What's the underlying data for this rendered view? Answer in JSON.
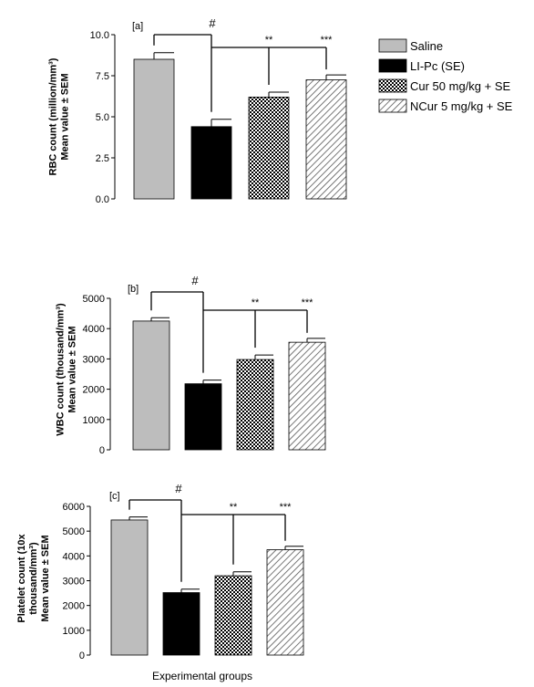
{
  "legend": [
    {
      "label": "Saline",
      "fill": "gray"
    },
    {
      "label": "LI-Pc (SE)",
      "fill": "black"
    },
    {
      "label": "Cur 50 mg/kg + SE",
      "fill": "check"
    },
    {
      "label": "NCur 5 mg/kg + SE",
      "fill": "hatch"
    }
  ],
  "x_axis_label": "Experimental groups",
  "colors": {
    "gray": "#bdbdbd",
    "black": "#000000",
    "axis": "#000000"
  },
  "chart_data": [
    {
      "type": "bar",
      "panel_label": "[a]",
      "ylabel_lines": [
        "RBC count (million/mm³)",
        "Mean value ± SEM"
      ],
      "categories": [
        "Saline",
        "LI-Pc (SE)",
        "Cur 50 mg/kg + SE",
        "NCur 5 mg/kg + SE"
      ],
      "values": [
        8.5,
        4.4,
        6.2,
        7.25
      ],
      "errors": [
        0.4,
        0.45,
        0.3,
        0.3
      ],
      "ylim": [
        0,
        10
      ],
      "yticks": [
        0.0,
        2.5,
        5.0,
        7.5,
        10.0
      ],
      "ytick_labels": [
        "0.0",
        "2.5",
        "5.0",
        "7.5",
        "10.0"
      ],
      "annotations": {
        "hash": "#",
        "cur": "**",
        "ncur": "***"
      }
    },
    {
      "type": "bar",
      "panel_label": "[b]",
      "ylabel_lines": [
        "WBC count (thousand/mm³)",
        "Mean value ± SEM"
      ],
      "categories": [
        "Saline",
        "LI-Pc (SE)",
        "Cur 50 mg/kg + SE",
        "NCur 5 mg/kg + SE"
      ],
      "values": [
        4250,
        2180,
        2980,
        3550
      ],
      "errors": [
        110,
        120,
        150,
        130
      ],
      "ylim": [
        0,
        5000
      ],
      "yticks": [
        0,
        1000,
        2000,
        3000,
        4000,
        5000
      ],
      "ytick_labels": [
        "0",
        "1000",
        "2000",
        "3000",
        "4000",
        "5000"
      ],
      "annotations": {
        "hash": "#",
        "cur": "**",
        "ncur": "***"
      }
    },
    {
      "type": "bar",
      "panel_label": "[c]",
      "ylabel_lines": [
        "Platelet count (10x",
        "thousand/mm³)",
        "Mean value ± SEM"
      ],
      "categories": [
        "Saline",
        "LI-Pc (SE)",
        "Cur 50 mg/kg + SE",
        "NCur 5 mg/kg + SE"
      ],
      "values": [
        5450,
        2520,
        3200,
        4250
      ],
      "errors": [
        120,
        140,
        160,
        140
      ],
      "ylim": [
        0,
        6000
      ],
      "yticks": [
        0,
        1000,
        2000,
        3000,
        4000,
        5000,
        6000
      ],
      "ytick_labels": [
        "0",
        "1000",
        "2000",
        "3000",
        "4000",
        "5000",
        "6000"
      ],
      "annotations": {
        "hash": "#",
        "cur": "**",
        "ncur": "***"
      }
    }
  ]
}
